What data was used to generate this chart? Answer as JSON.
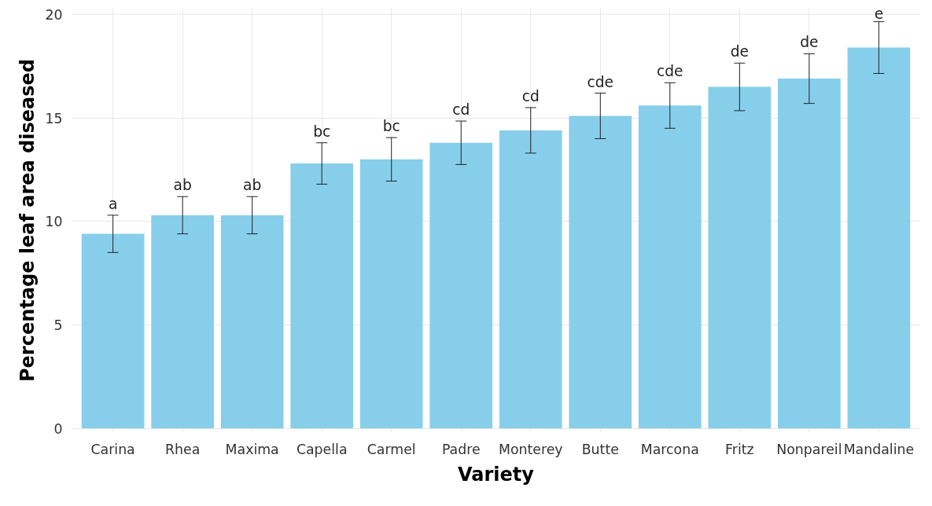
{
  "chart_data": {
    "type": "bar",
    "xlabel": "Variety",
    "ylabel": "Percentage leaf area diseased",
    "categories": [
      "Carina",
      "Rhea",
      "Maxima",
      "Capella",
      "Carmel",
      "Padre",
      "Monterey",
      "Butte",
      "Marcona",
      "Fritz",
      "Nonpareil",
      "Mandaline"
    ],
    "values": [
      9.4,
      10.3,
      10.3,
      12.8,
      13.0,
      13.8,
      14.4,
      15.1,
      15.6,
      16.5,
      16.9,
      18.4
    ],
    "errors": [
      0.9,
      0.9,
      0.9,
      1.0,
      1.05,
      1.05,
      1.1,
      1.1,
      1.1,
      1.15,
      1.2,
      1.25
    ],
    "color": "#87ceeb",
    "ylim": [
      -0.2,
      20.3
    ],
    "yticks": [
      0,
      5,
      10,
      15,
      20
    ],
    "grid": true,
    "annotations": [
      {
        "text": "a",
        "x": "Carina",
        "y": 10.3
      },
      {
        "text": "ab",
        "x": "Rhea",
        "y": 11.2
      },
      {
        "text": "ab",
        "x": "Maxima",
        "y": 11.2
      },
      {
        "text": "bc",
        "x": "Capella",
        "y": 13.8
      },
      {
        "text": "bc",
        "x": "Carmel",
        "y": 14.05
      },
      {
        "text": "cd",
        "x": "Padre",
        "y": 14.85
      },
      {
        "text": "cd",
        "x": "Monterey",
        "y": 15.5
      },
      {
        "text": "cde",
        "x": "Butte",
        "y": 16.2
      },
      {
        "text": "cde",
        "x": "Marcona",
        "y": 16.7
      },
      {
        "text": "de",
        "x": "Fritz",
        "y": 17.65
      },
      {
        "text": "de",
        "x": "Nonpareil",
        "y": 18.1
      },
      {
        "text": "e",
        "x": "Mandaline",
        "y": 19.65
      }
    ]
  }
}
